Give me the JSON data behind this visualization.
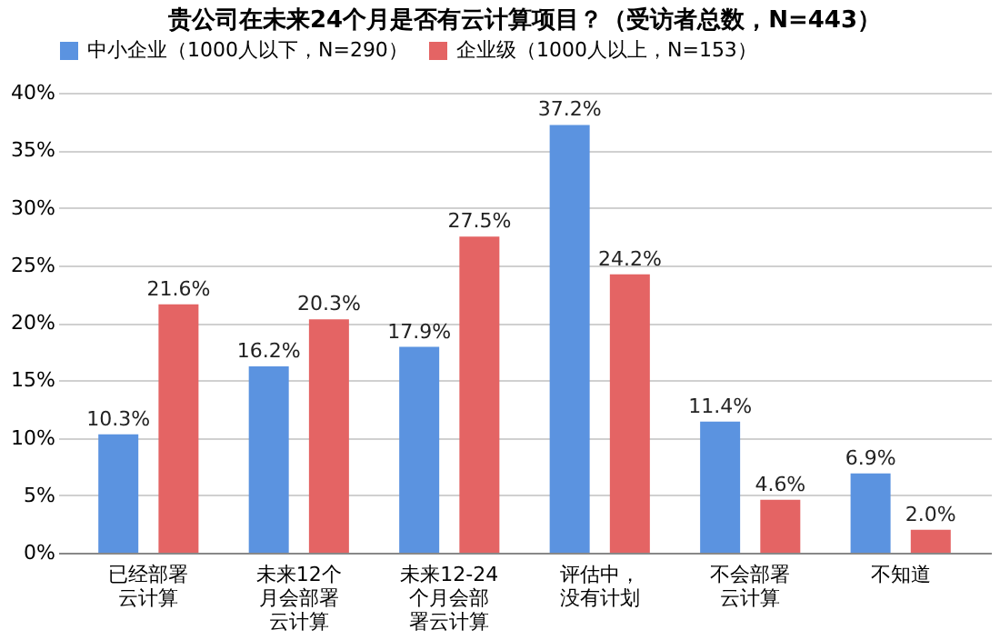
{
  "chart_data": {
    "type": "bar",
    "title": "贵公司在未来24个月是否有云计算项目？（受访者总数，N=443）",
    "categories": [
      "已经部署云计算",
      "未来12个月会部署云计算",
      "未来12-24个月会部署云计算",
      "评估中，没有计划",
      "不会部署云计算",
      "不知道"
    ],
    "series": [
      {
        "name": "中小企业（1000人以下，N=290）",
        "color": "#5b93e0",
        "values": [
          10.3,
          16.2,
          17.9,
          37.2,
          11.4,
          6.9
        ],
        "value_labels": [
          "10.3%",
          "16.2%",
          "17.9%",
          "37.2%",
          "11.4%",
          "6.9%"
        ]
      },
      {
        "name": "企业级（1000人以上，N=153）",
        "color": "#e46464",
        "values": [
          21.6,
          20.3,
          27.5,
          24.2,
          4.6,
          2.0
        ],
        "value_labels": [
          "21.6%",
          "20.3%",
          "27.5%",
          "24.2%",
          "4.6%",
          "2.0%"
        ]
      }
    ],
    "ylim": [
      0,
      40
    ],
    "yticks": [
      {
        "value": 0,
        "label": "0%"
      },
      {
        "value": 5,
        "label": "5%"
      },
      {
        "value": 10,
        "label": "10%"
      },
      {
        "value": 15,
        "label": "15%"
      },
      {
        "value": 20,
        "label": "20%"
      },
      {
        "value": 25,
        "label": "25%"
      },
      {
        "value": 30,
        "label": "30%"
      },
      {
        "value": 35,
        "label": "35%"
      },
      {
        "value": 40,
        "label": "40%"
      }
    ],
    "grid": "y",
    "legend": "top"
  }
}
